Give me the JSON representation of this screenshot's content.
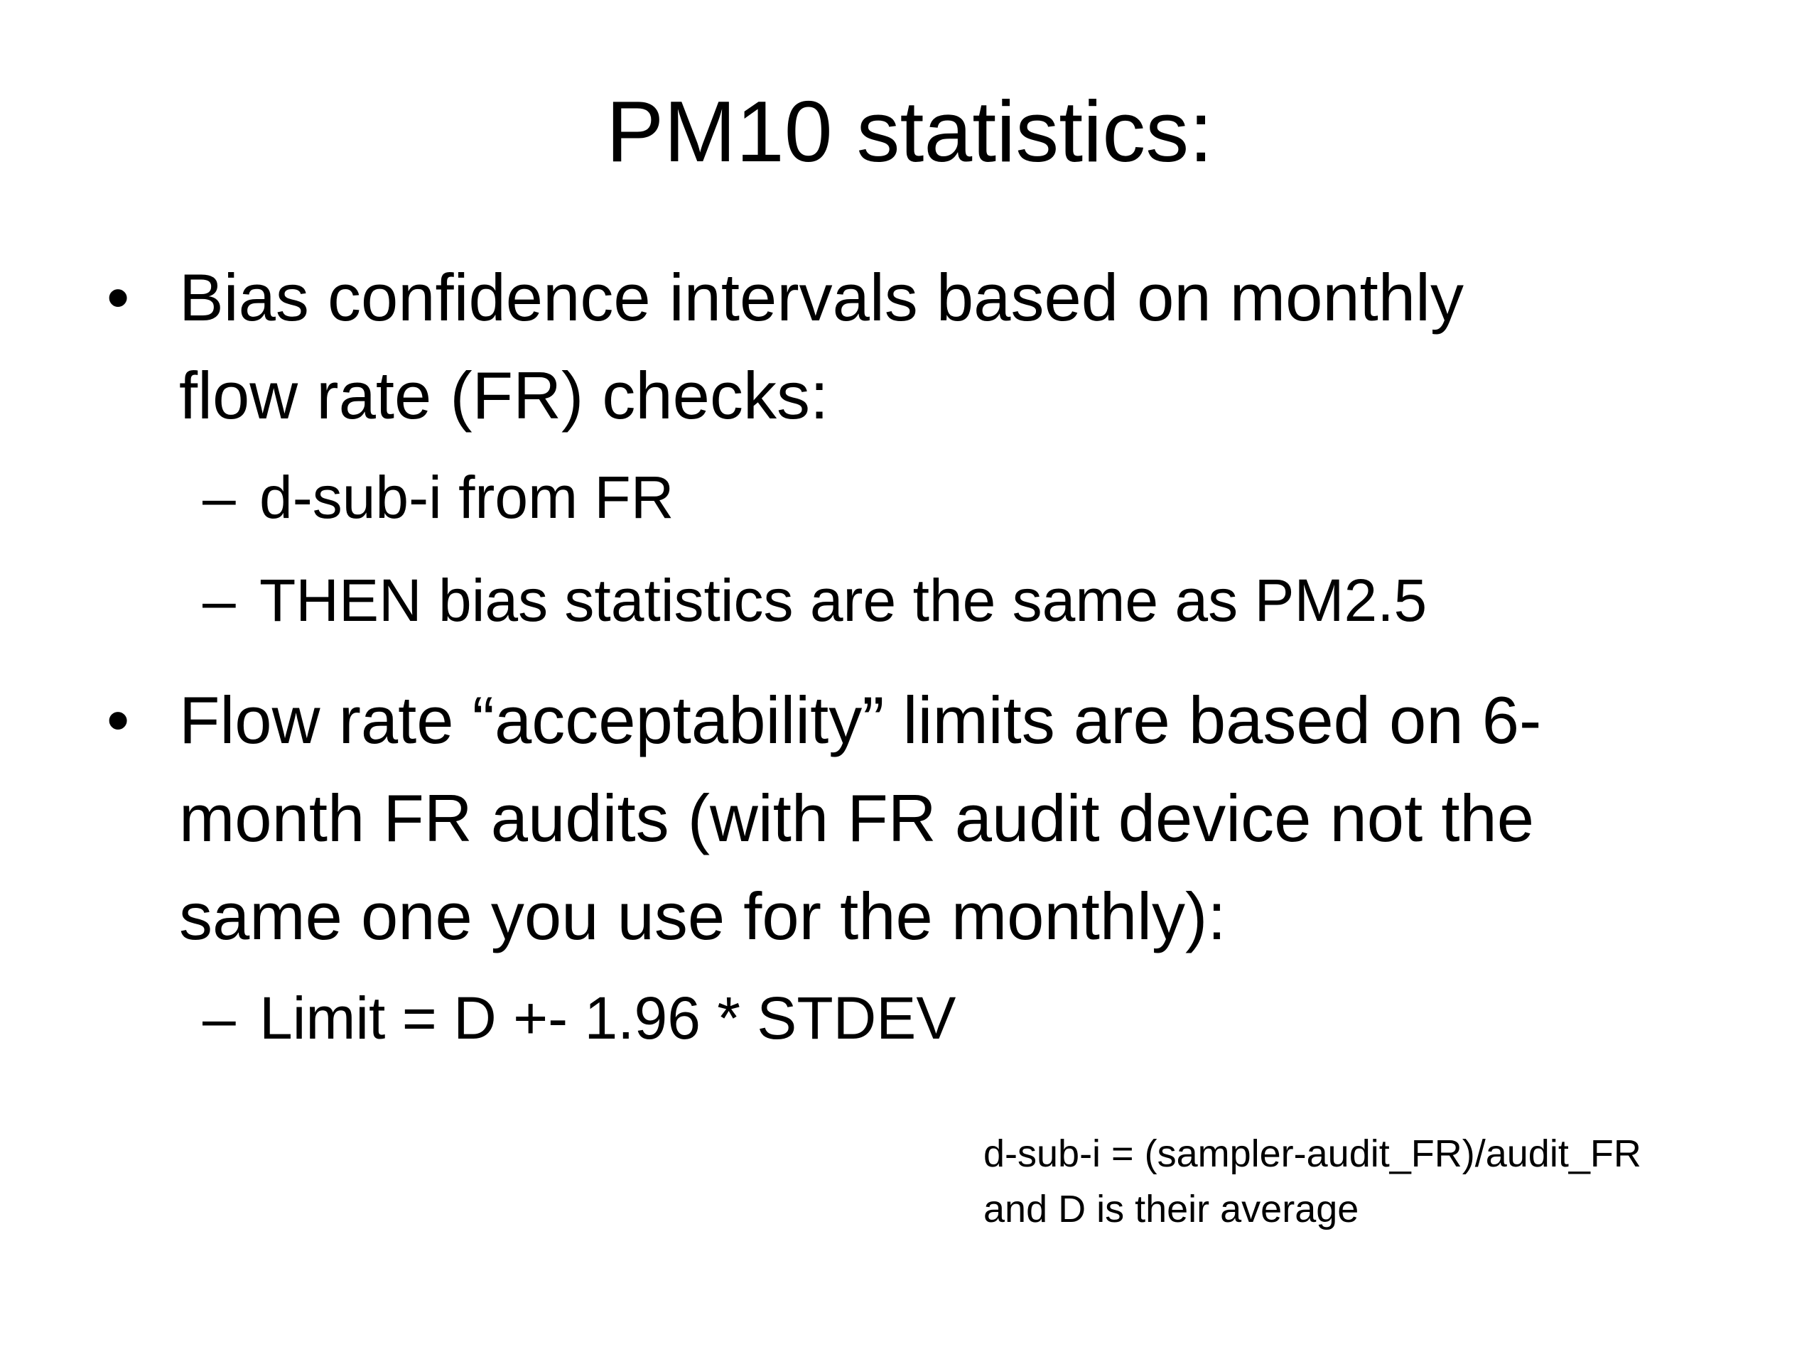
{
  "slide": {
    "title": "PM10 statistics:",
    "bullets": [
      {
        "symbol": "•",
        "text": "Bias confidence intervals based on monthly\nflow rate (FR) checks:",
        "subitems": [
          {
            "symbol": "–",
            "text": "d-sub-i from FR"
          },
          {
            "symbol": "–",
            "text": "THEN bias statistics are the same as PM2.5"
          }
        ]
      },
      {
        "symbol": "•",
        "text": "Flow rate “acceptability” limits are based on 6-\nmonth FR audits (with FR audit device not the\nsame one you use for the monthly):",
        "subitems": [
          {
            "symbol": "–",
            "text": "Limit = D +- 1.96 * STDEV"
          }
        ]
      }
    ],
    "note": {
      "line1": "d-sub-i = (sampler-audit_FR)/audit_FR",
      "line2": "and D is their average"
    }
  }
}
